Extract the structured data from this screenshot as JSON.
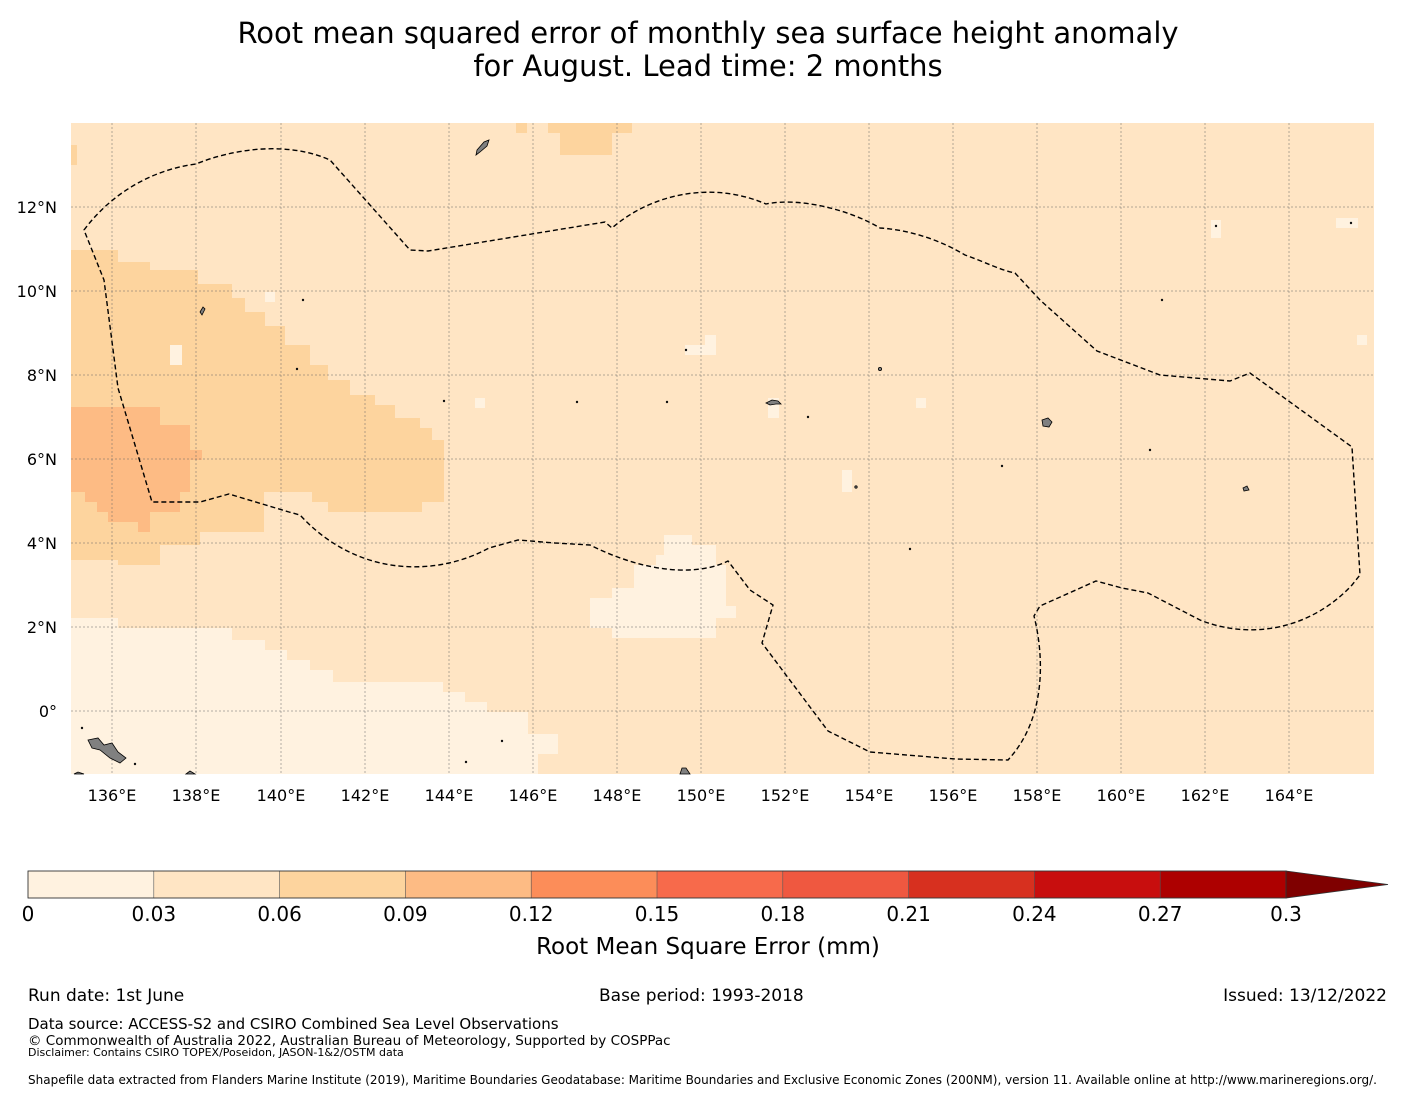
{
  "title_line1": "Root mean squared error of monthly sea surface height anomaly",
  "title_line2": "for August. Lead time: 2 months",
  "map": {
    "lat_labels": [
      "12°N",
      "10°N",
      "8°N",
      "6°N",
      "4°N",
      "2°N",
      "0°"
    ],
    "lon_labels": [
      "136°E",
      "138°E",
      "140°E",
      "142°E",
      "144°E",
      "146°E",
      "148°E",
      "150°E",
      "152°E",
      "154°E",
      "156°E",
      "158°E",
      "160°E",
      "162°E",
      "164°E"
    ],
    "land_color": "#808080",
    "boundary_style": "dashed black"
  },
  "colorbar": {
    "tick_labels": [
      "0",
      "0.03",
      "0.06",
      "0.09",
      "0.12",
      "0.15",
      "0.18",
      "0.21",
      "0.24",
      "0.27",
      "0.3"
    ],
    "colors": [
      "#fff2e0",
      "#ffe5c4",
      "#fdd49e",
      "#fdbb84",
      "#fc8d59",
      "#f76a4b",
      "#ef5840",
      "#d7301f",
      "#c80e0e",
      "#ad0000",
      "#7f0000"
    ],
    "title": "Root Mean Square Error (mm)",
    "extend": "max"
  },
  "footer": {
    "run_date": "Run date: 1st June",
    "base_period": "Base period: 1993-2018",
    "issued": "Issued: 13/12/2022",
    "data_source": "Data source: ACCESS-S2 and CSIRO Combined Sea Level Observations",
    "copyright": "© Commonwealth of Australia 2022, Australian Bureau of Meteorology, Supported by COSPPac",
    "disclaimer": "Disclaimer: Contains CSIRO TOPEX/Poseidon, JASON-1&2/OSTM data",
    "shapefile": "Shapefile data extracted from Flanders Marine Institute (2019), Maritime Boundaries Geodatabase: Maritime Boundaries and Exclusive Economic Zones (200NM), version 11. Available online at http://www.marineregions.org/."
  }
}
